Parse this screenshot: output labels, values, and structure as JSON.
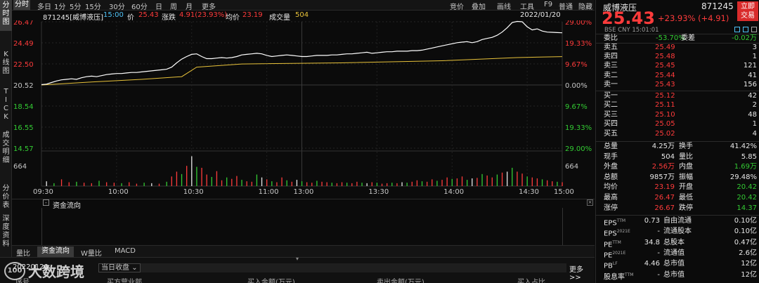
{
  "left_tabs": [
    "分时图",
    "K线图",
    "TICK",
    "成交明细",
    "分价表",
    "深度资料"
  ],
  "top_tabs": [
    "分时",
    "多日",
    "1分",
    "5分",
    "15分",
    "30分",
    "60分",
    "日",
    "周",
    "月",
    "更多"
  ],
  "top_right": [
    "竞价",
    "叠加",
    "画线",
    "工具",
    "F9",
    "普通",
    "隐藏"
  ],
  "info": {
    "code_name": "871245[威博液压]",
    "time": "15:00",
    "price_label": "价",
    "price": "25.43",
    "change_label": "涨跌",
    "change": "4.91(23.93%)",
    "avg_label": "均价",
    "avg": "23.19",
    "vol_label": "成交量",
    "vol": "504",
    "date": "2022/01/20"
  },
  "chart_data": {
    "type": "line",
    "y_left_ticks": [
      "26.47",
      "24.49",
      "22.50",
      "20.52",
      "18.54",
      "16.55",
      "14.57"
    ],
    "y_right_ticks": [
      "29.00%",
      "19.33%",
      "9.67%",
      "0.00%",
      "9.67%",
      "19.33%",
      "29.00%"
    ],
    "volume_tick": "664",
    "x_ticks": [
      "09:30",
      "10:00",
      "10:30",
      "11:00",
      "13:00",
      "13:30",
      "14:00",
      "14:30",
      "15:00"
    ],
    "price_series": [
      [
        0,
        20.55
      ],
      [
        2,
        20.6
      ],
      [
        4,
        20.75
      ],
      [
        6,
        20.9
      ],
      [
        8,
        21.0
      ],
      [
        10,
        21.05
      ],
      [
        12,
        21.1
      ],
      [
        14,
        21.05
      ],
      [
        16,
        21.2
      ],
      [
        18,
        21.3
      ],
      [
        20,
        21.35
      ],
      [
        22,
        21.3
      ],
      [
        24,
        21.4
      ],
      [
        26,
        21.5
      ],
      [
        28,
        21.55
      ],
      [
        30,
        21.6
      ],
      [
        32,
        21.6
      ],
      [
        34,
        21.65
      ],
      [
        36,
        21.7
      ],
      [
        38,
        21.7
      ],
      [
        40,
        21.75
      ],
      [
        42,
        21.8
      ],
      [
        44,
        21.85
      ],
      [
        46,
        21.9
      ],
      [
        48,
        21.95
      ],
      [
        50,
        22.0
      ],
      [
        52,
        22.2
      ],
      [
        54,
        22.6
      ],
      [
        56,
        22.95
      ],
      [
        58,
        23.2
      ],
      [
        60,
        23.4
      ],
      [
        62,
        23.45
      ],
      [
        64,
        23.2
      ],
      [
        66,
        23.0
      ],
      [
        68,
        23.0
      ],
      [
        70,
        23.05
      ],
      [
        72,
        23.1
      ],
      [
        74,
        23.05
      ],
      [
        76,
        23.1
      ],
      [
        78,
        23.2
      ],
      [
        80,
        23.35
      ],
      [
        82,
        23.4
      ],
      [
        84,
        23.45
      ],
      [
        86,
        23.5
      ],
      [
        88,
        23.45
      ],
      [
        90,
        23.3
      ],
      [
        92,
        23.2
      ],
      [
        94,
        23.25
      ],
      [
        96,
        23.3
      ],
      [
        98,
        23.35
      ],
      [
        100,
        23.3
      ],
      [
        102,
        23.25
      ],
      [
        104,
        23.2
      ],
      [
        106,
        23.2
      ],
      [
        108,
        23.25
      ],
      [
        110,
        23.3
      ],
      [
        112,
        23.3
      ],
      [
        114,
        23.3
      ],
      [
        116,
        23.35
      ],
      [
        118,
        23.35
      ],
      [
        120,
        23.4
      ],
      [
        122,
        23.45
      ],
      [
        124,
        23.45
      ],
      [
        126,
        23.5
      ],
      [
        128,
        23.55
      ],
      [
        130,
        23.6
      ],
      [
        132,
        23.5
      ],
      [
        134,
        23.55
      ],
      [
        136,
        23.6
      ],
      [
        138,
        23.65
      ],
      [
        140,
        23.65
      ],
      [
        142,
        23.7
      ],
      [
        144,
        23.7
      ],
      [
        146,
        23.7
      ],
      [
        148,
        23.75
      ],
      [
        150,
        23.75
      ],
      [
        152,
        23.8
      ],
      [
        154,
        23.9
      ],
      [
        156,
        24.0
      ],
      [
        158,
        24.1
      ],
      [
        160,
        24.2
      ],
      [
        162,
        24.3
      ],
      [
        164,
        24.4
      ],
      [
        166,
        24.5
      ],
      [
        168,
        24.55
      ],
      [
        170,
        24.6
      ],
      [
        172,
        24.5
      ],
      [
        174,
        24.6
      ],
      [
        176,
        24.8
      ],
      [
        178,
        24.9
      ],
      [
        180,
        25.0
      ],
      [
        182,
        25.2
      ],
      [
        184,
        25.5
      ],
      [
        186,
        25.9
      ],
      [
        188,
        26.4
      ],
      [
        190,
        26.5
      ],
      [
        192,
        26.47
      ],
      [
        194,
        26.0
      ],
      [
        196,
        25.7
      ],
      [
        198,
        25.8
      ],
      [
        200,
        25.6
      ],
      [
        202,
        25.5
      ],
      [
        204,
        25.48
      ],
      [
        206,
        25.45
      ],
      [
        208,
        25.43
      ]
    ],
    "avg_series": [
      [
        0,
        20.52
      ],
      [
        20,
        20.8
      ],
      [
        40,
        21.05
      ],
      [
        56,
        21.3
      ],
      [
        62,
        22.2
      ],
      [
        80,
        22.5
      ],
      [
        120,
        22.6
      ],
      [
        160,
        22.8
      ],
      [
        190,
        23.1
      ],
      [
        208,
        23.19
      ]
    ],
    "volumes": [
      [
        2,
        100
      ],
      [
        5,
        60
      ],
      [
        8,
        140
      ],
      [
        11,
        80
      ],
      [
        14,
        90
      ],
      [
        17,
        70
      ],
      [
        20,
        60
      ],
      [
        23,
        110
      ],
      [
        26,
        80
      ],
      [
        29,
        70
      ],
      [
        32,
        60
      ],
      [
        35,
        80
      ],
      [
        38,
        50
      ],
      [
        41,
        70
      ],
      [
        44,
        60
      ],
      [
        47,
        50
      ],
      [
        50,
        90
      ],
      [
        52,
        200
      ],
      [
        54,
        300
      ],
      [
        56,
        250
      ],
      [
        58,
        420
      ],
      [
        60,
        620
      ],
      [
        62,
        400
      ],
      [
        64,
        380
      ],
      [
        66,
        240
      ],
      [
        68,
        190
      ],
      [
        70,
        310
      ],
      [
        72,
        120
      ],
      [
        74,
        180
      ],
      [
        76,
        150
      ],
      [
        78,
        210
      ],
      [
        80,
        130
      ],
      [
        82,
        100
      ],
      [
        84,
        90
      ],
      [
        86,
        240
      ],
      [
        88,
        180
      ],
      [
        90,
        140
      ],
      [
        92,
        100
      ],
      [
        94,
        80
      ],
      [
        96,
        180
      ],
      [
        98,
        120
      ],
      [
        100,
        90
      ],
      [
        102,
        130
      ],
      [
        104,
        100
      ],
      [
        106,
        80
      ],
      [
        108,
        70
      ],
      [
        110,
        110
      ],
      [
        112,
        90
      ],
      [
        114,
        80
      ],
      [
        116,
        70
      ],
      [
        118,
        60
      ],
      [
        120,
        80
      ],
      [
        122,
        70
      ],
      [
        124,
        60
      ],
      [
        126,
        90
      ],
      [
        128,
        70
      ],
      [
        130,
        60
      ],
      [
        132,
        80
      ],
      [
        134,
        70
      ],
      [
        136,
        50
      ],
      [
        138,
        60
      ],
      [
        140,
        70
      ],
      [
        142,
        60
      ],
      [
        144,
        80
      ],
      [
        146,
        70
      ],
      [
        148,
        90
      ],
      [
        150,
        120
      ],
      [
        152,
        100
      ],
      [
        154,
        90
      ],
      [
        156,
        140
      ],
      [
        158,
        110
      ],
      [
        160,
        130
      ],
      [
        162,
        180
      ],
      [
        164,
        150
      ],
      [
        166,
        160
      ],
      [
        168,
        200
      ],
      [
        170,
        130
      ],
      [
        172,
        160
      ],
      [
        174,
        170
      ],
      [
        176,
        250
      ],
      [
        178,
        220
      ],
      [
        180,
        180
      ],
      [
        182,
        240
      ],
      [
        184,
        280
      ],
      [
        186,
        300
      ],
      [
        188,
        380
      ],
      [
        190,
        300
      ],
      [
        192,
        260
      ],
      [
        194,
        200
      ],
      [
        196,
        180
      ],
      [
        198,
        160
      ],
      [
        200,
        140
      ],
      [
        202,
        120
      ],
      [
        204,
        100
      ],
      [
        206,
        90
      ],
      [
        208,
        80
      ]
    ],
    "volume_max": 700,
    "ylim": [
      14.57,
      26.47
    ]
  },
  "money_flow_title": "资金流向",
  "bottom_tabs": [
    "量比",
    "资金流向",
    "W量比",
    "MACD"
  ],
  "footer": {
    "prefix": "20220120",
    "dropdown": "当日收盘",
    "more": "更多>>",
    "headers": [
      "序号",
      "买方营业部",
      "买入金额(万元)",
      "卖出金额(万元)",
      "买入占比"
    ],
    "watermark": "大数跨境"
  },
  "quote": {
    "name": "威博液压",
    "code": "871245",
    "price": "25.43",
    "change": "+23.93% (+4.91)",
    "button": "立即交易",
    "exchange": "BSE  CNY  15:01:01",
    "weibi_label": "委比",
    "weibi": "-53.70%",
    "weicha_label": "委差",
    "weicha": "-0.02万",
    "sell": [
      {
        "label": "卖五",
        "price": "25.49",
        "vol": "3"
      },
      {
        "label": "卖四",
        "price": "25.48",
        "vol": "1"
      },
      {
        "label": "卖三",
        "price": "25.45",
        "vol": "121"
      },
      {
        "label": "卖二",
        "price": "25.44",
        "vol": "41"
      },
      {
        "label": "卖一",
        "price": "25.43",
        "vol": "156"
      }
    ],
    "buy": [
      {
        "label": "买一",
        "price": "25.12",
        "vol": "42"
      },
      {
        "label": "买二",
        "price": "25.11",
        "vol": "2"
      },
      {
        "label": "买三",
        "price": "25.10",
        "vol": "48"
      },
      {
        "label": "买四",
        "price": "25.05",
        "vol": "1"
      },
      {
        "label": "买五",
        "price": "25.02",
        "vol": "4"
      }
    ],
    "stats": [
      {
        "l1": "总量",
        "v1": "4.25万",
        "c1": "white",
        "l2": "换手",
        "v2": "41.42%",
        "c2": "white"
      },
      {
        "l1": "现手",
        "v1": "504",
        "c1": "white",
        "l2": "量比",
        "v2": "5.85",
        "c2": "white"
      },
      {
        "l1": "外盘",
        "v1": "2.56万",
        "c1": "red",
        "l2": "内盘",
        "v2": "1.69万",
        "c2": "green"
      },
      {
        "l1": "总额",
        "v1": "9857万",
        "c1": "white",
        "l2": "振幅",
        "v2": "29.48%",
        "c2": "white"
      },
      {
        "l1": "均价",
        "v1": "23.19",
        "c1": "red",
        "l2": "开盘",
        "v2": "20.42",
        "c2": "green"
      },
      {
        "l1": "最高",
        "v1": "26.47",
        "c1": "red",
        "l2": "最低",
        "v2": "20.42",
        "c2": "green"
      },
      {
        "l1": "涨停",
        "v1": "26.67",
        "c1": "red",
        "l2": "跌停",
        "v2": "14.37",
        "c2": "green"
      }
    ],
    "fin": [
      {
        "l1": "EPS",
        "s1": "TTM",
        "v1": "0.73",
        "l2": "自由流通",
        "v2": "0.10亿"
      },
      {
        "l1": "EPS",
        "s1": "2021E",
        "v1": "-",
        "l2": "流通股本",
        "v2": "0.10亿"
      },
      {
        "l1": "PE",
        "s1": "TTM",
        "v1": "34.8",
        "l2": "总股本",
        "v2": "0.47亿"
      },
      {
        "l1": "PE",
        "s1": "2021E",
        "v1": "-",
        "l2": "流通值",
        "v2": "2.6亿"
      },
      {
        "l1": "PB",
        "s1": "LF",
        "v1": "4.46",
        "l2": "总市值",
        "v2": "12亿"
      },
      {
        "l1": "股息率",
        "s1": "TTM",
        "v1": "-",
        "l2": "总市值",
        "v2": "12亿"
      }
    ]
  }
}
